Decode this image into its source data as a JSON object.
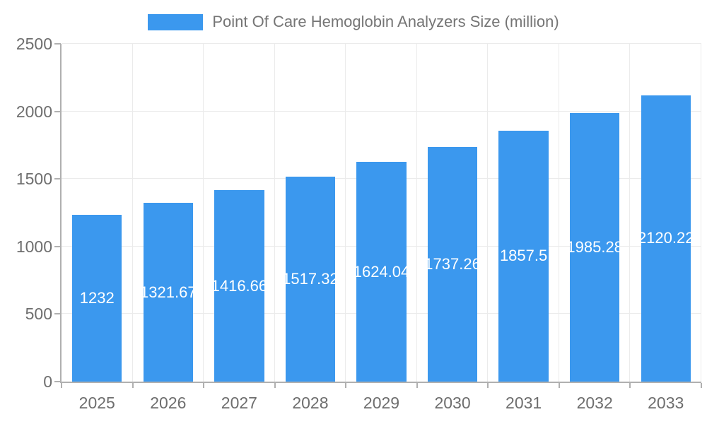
{
  "chart_data": {
    "type": "bar",
    "title": "Point Of Care Hemoglobin Analyzers Size (million)",
    "legend_position": "top",
    "categories": [
      "2025",
      "2026",
      "2027",
      "2028",
      "2029",
      "2030",
      "2031",
      "2032",
      "2033"
    ],
    "values": [
      1232,
      1321.67,
      1416.66,
      1517.32,
      1624.04,
      1737.26,
      1857.5,
      1985.28,
      2120.22
    ],
    "xlabel": "",
    "ylabel": "",
    "ylim": [
      0,
      2500
    ],
    "yticks": [
      0,
      500,
      1000,
      1500,
      2000,
      2500
    ],
    "grid": true,
    "bar_width_fraction": 0.7,
    "colors": {
      "bar": "#3b98ee",
      "value_label": "#ffffff",
      "grid_line": "#ebebeb",
      "axis_line": "#b0b0b0",
      "axis_text": "#6e6e6e",
      "title_text": "#757575"
    }
  }
}
